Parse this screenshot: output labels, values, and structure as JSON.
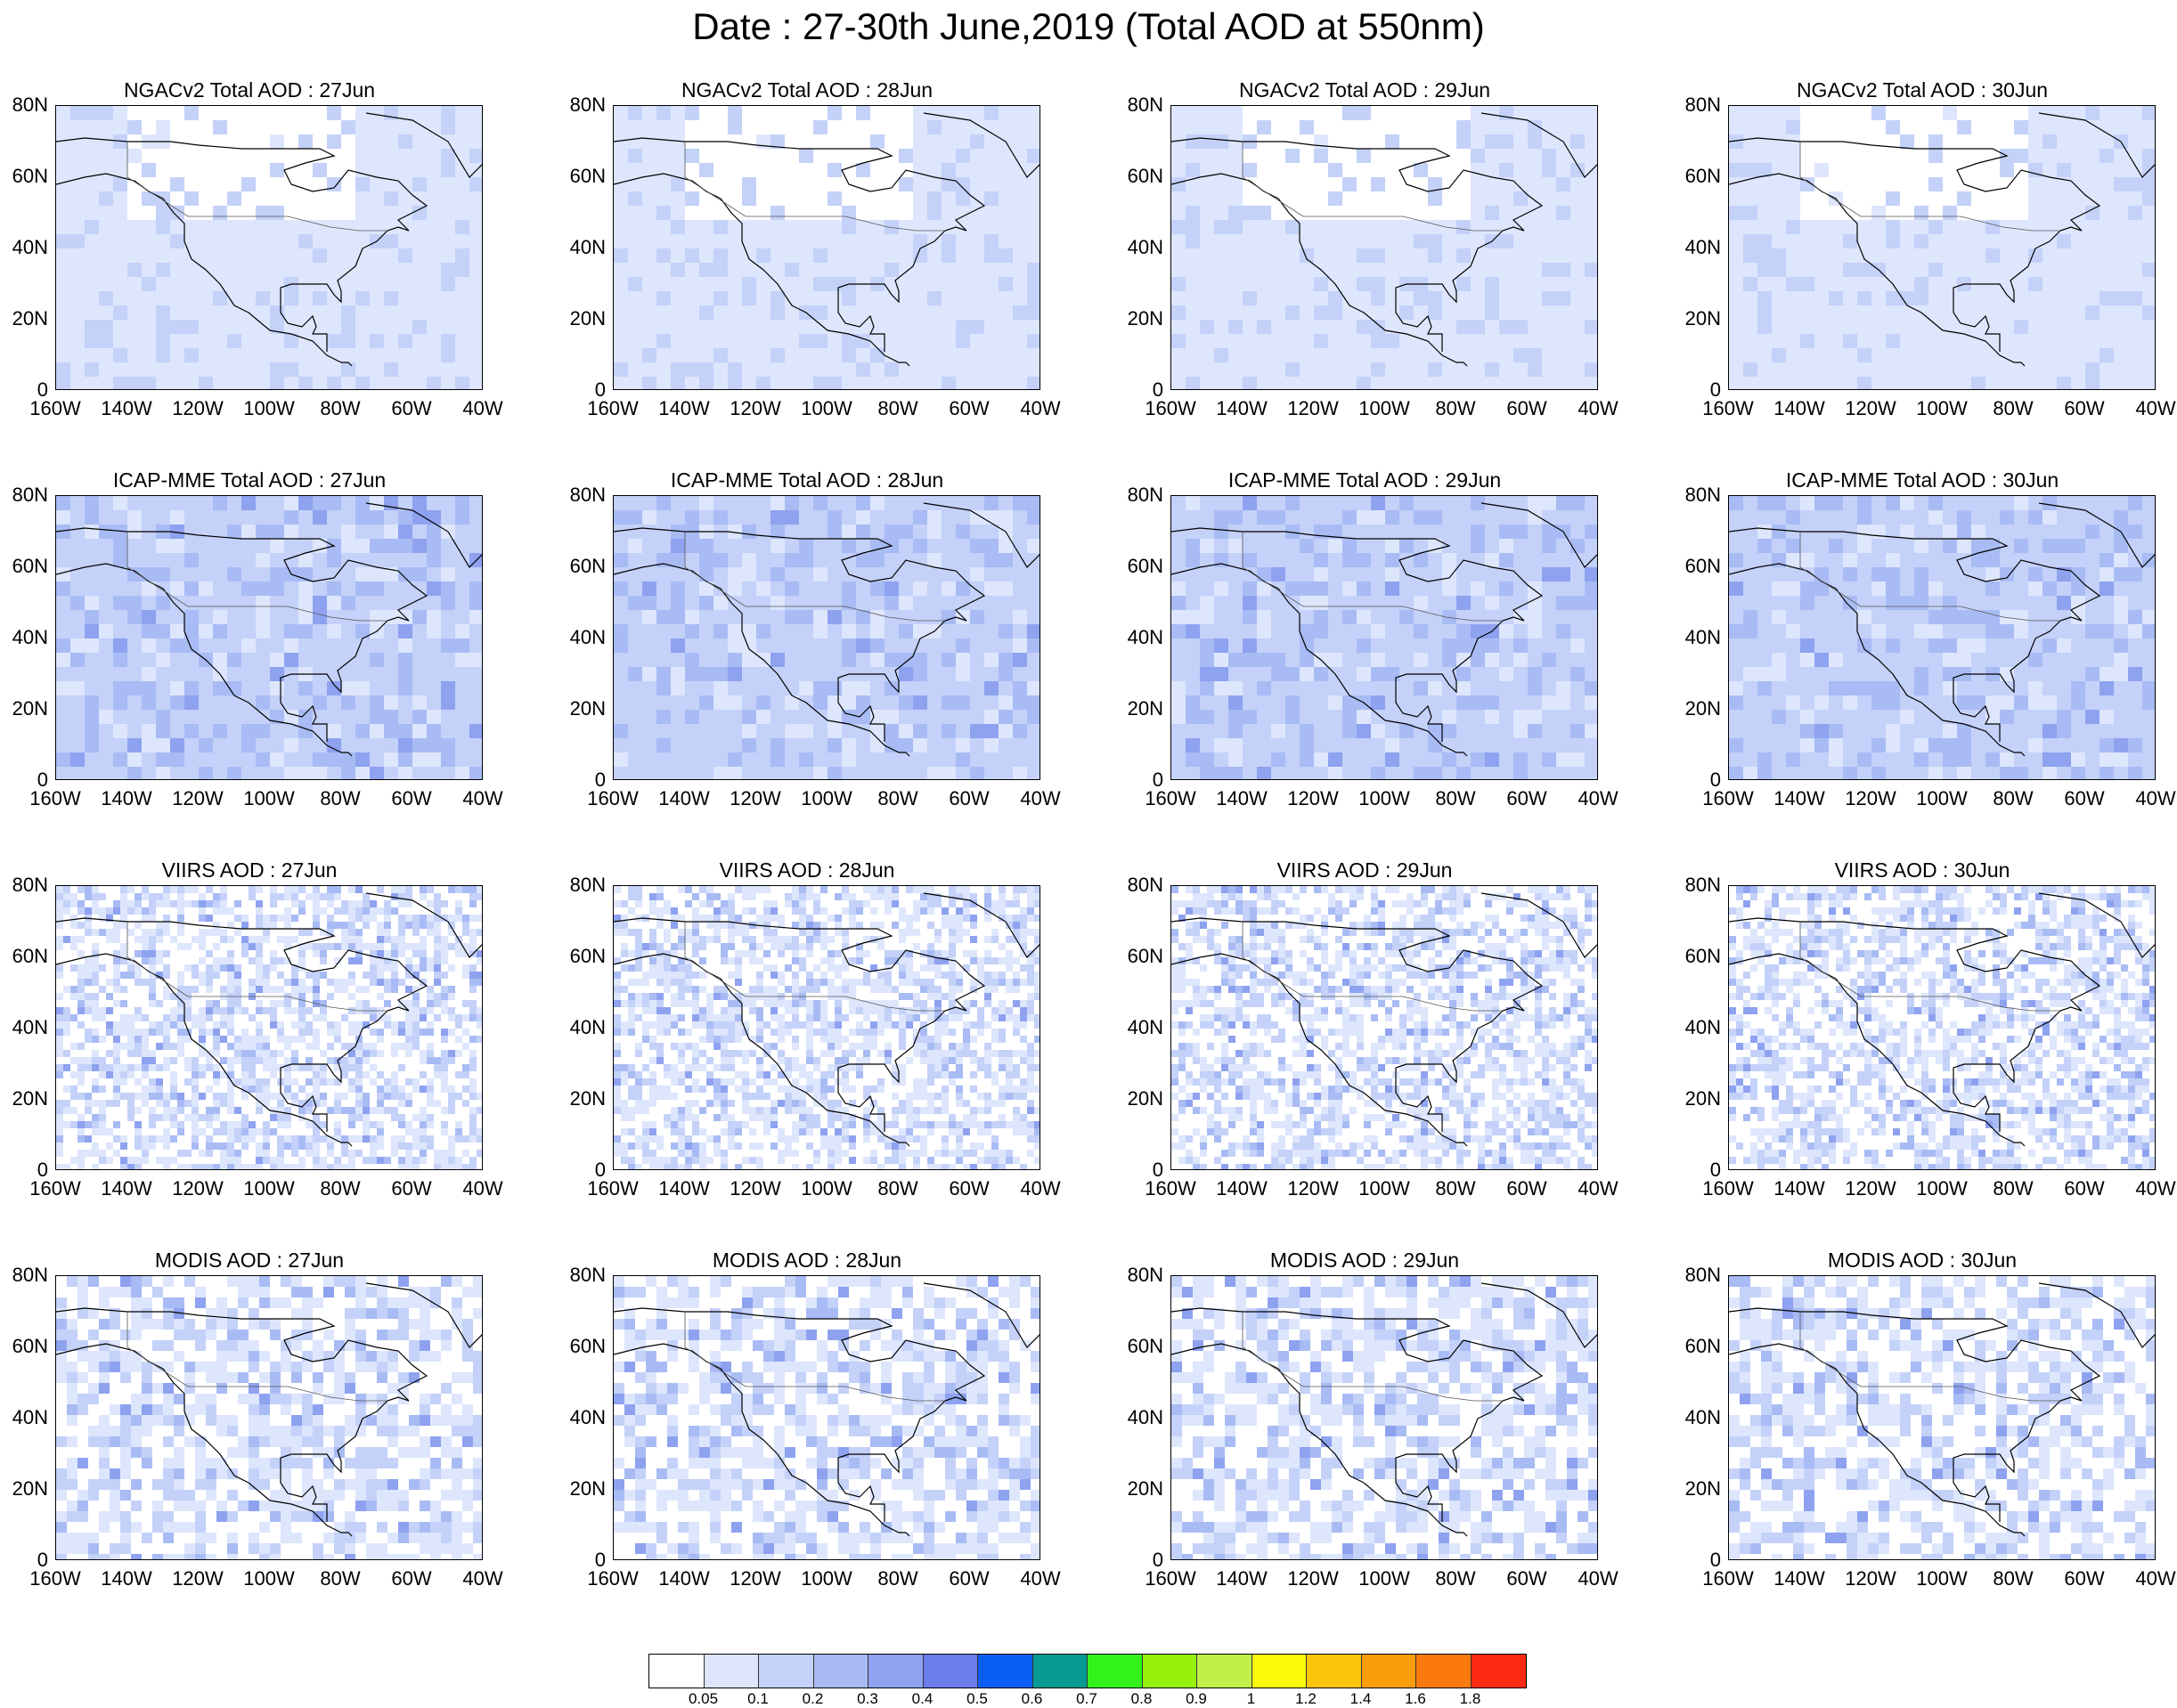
{
  "title": "Date : 27-30th June,2019 (Total AOD at 550nm)",
  "panels": [
    {
      "title": "NGACv2 Total AOD : 27Jun",
      "product": "NGACv2"
    },
    {
      "title": "NGACv2 Total AOD : 28Jun",
      "product": "NGACv2"
    },
    {
      "title": "NGACv2 Total AOD : 29Jun",
      "product": "NGACv2"
    },
    {
      "title": "NGACv2 Total AOD : 30Jun",
      "product": "NGACv2"
    },
    {
      "title": "ICAP-MME Total AOD : 27Jun",
      "product": "ICAP-MME"
    },
    {
      "title": "ICAP-MME Total AOD : 28Jun",
      "product": "ICAP-MME"
    },
    {
      "title": "ICAP-MME Total AOD : 29Jun",
      "product": "ICAP-MME"
    },
    {
      "title": "ICAP-MME Total AOD : 30Jun",
      "product": "ICAP-MME"
    },
    {
      "title": "VIIRS AOD : 27Jun",
      "product": "VIIRS"
    },
    {
      "title": "VIIRS AOD : 28Jun",
      "product": "VIIRS"
    },
    {
      "title": "VIIRS AOD : 29Jun",
      "product": "VIIRS"
    },
    {
      "title": "VIIRS AOD : 30Jun",
      "product": "VIIRS"
    },
    {
      "title": "MODIS AOD : 27Jun",
      "product": "MODIS"
    },
    {
      "title": "MODIS AOD : 28Jun",
      "product": "MODIS"
    },
    {
      "title": "MODIS AOD : 29Jun",
      "product": "MODIS"
    },
    {
      "title": "MODIS AOD : 30Jun",
      "product": "MODIS"
    }
  ],
  "lat_labels": [
    "80N",
    "60N",
    "40N",
    "20N",
    "0"
  ],
  "lon_labels": [
    "160W",
    "140W",
    "120W",
    "100W",
    "80W",
    "60W",
    "40W"
  ],
  "colorbar": {
    "colors": [
      "#ffffff",
      "#dde6fc",
      "#c4d1f9",
      "#a8bbf4",
      "#8ea2f0",
      "#6b7ceb",
      "#0a5ef2",
      "#069a92",
      "#33f21b",
      "#96f20c",
      "#c2f04a",
      "#fbfa0b",
      "#fbc50b",
      "#fb9e0b",
      "#fb7a10",
      "#fb2a10"
    ],
    "labels": [
      "0.05",
      "0.1",
      "0.2",
      "0.3",
      "0.4",
      "0.5",
      "0.6",
      "0.7",
      "0.8",
      "0.9",
      "1",
      "1.2",
      "1.4",
      "1.6",
      "1.8"
    ]
  }
}
